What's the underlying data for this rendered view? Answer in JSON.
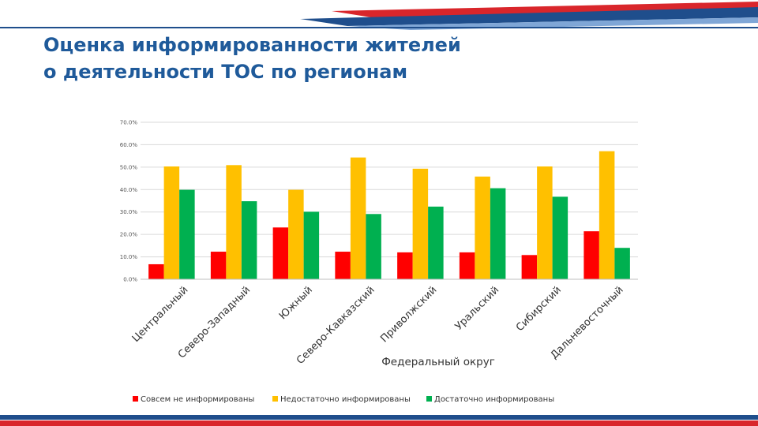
{
  "slide": {
    "title": "Оценка информированности жителей\nо деятельности ТОС по регионам",
    "colors": {
      "title": "#1f5a9a",
      "accent_blue": "#1f4e8c",
      "accent_red": "#d9262b"
    }
  },
  "chart_data": {
    "type": "bar",
    "title": "",
    "xlabel": "Федеральный округ",
    "ylabel": "",
    "ylim": [
      0,
      70
    ],
    "yticks": [
      0,
      10,
      20,
      30,
      40,
      50,
      60,
      70
    ],
    "ytick_labels": [
      "0.0%",
      "10.0%",
      "20.0%",
      "30.0%",
      "40.0%",
      "50.0%",
      "60.0%",
      "70.0%"
    ],
    "grid": true,
    "legend_position": "bottom",
    "categories": [
      "Центральный",
      "Северо-Западный",
      "Южный",
      "Северо-Кавказский",
      "Приволжский",
      "Уральский",
      "Сибирский",
      "Дальневосточный"
    ],
    "series": [
      {
        "name": "Совсем не информированы",
        "color": "#ff0000",
        "values": [
          6.7,
          12.3,
          23.1,
          12.3,
          12.0,
          12.0,
          10.8,
          21.4
        ]
      },
      {
        "name": "Недостаточно информированы",
        "color": "#ffc000",
        "values": [
          50.3,
          50.9,
          39.9,
          54.3,
          49.3,
          45.8,
          50.3,
          57.1
        ]
      },
      {
        "name": "Достаточно информированы",
        "color": "#00b050",
        "values": [
          39.9,
          34.8,
          30.1,
          29.1,
          32.4,
          40.6,
          36.8,
          14.0
        ]
      }
    ]
  }
}
